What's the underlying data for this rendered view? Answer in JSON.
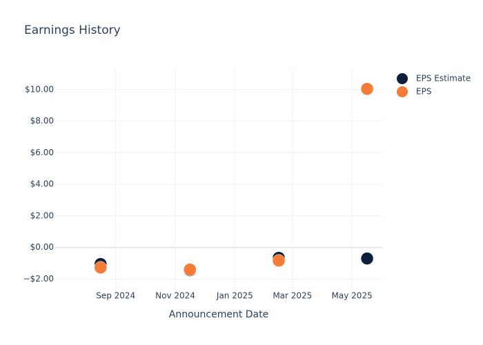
{
  "chart_data": {
    "type": "scatter",
    "title": "Earnings History",
    "x_label": "Announcement Date",
    "x": [
      "2024-08",
      "2024-11",
      "2025-02",
      "2025-05"
    ],
    "series": [
      {
        "name": "EPS Estimate",
        "color": "#0d1f3d",
        "values": [
          -1.05,
          -1.44,
          -0.66,
          -0.7
        ]
      },
      {
        "name": "EPS",
        "color": "#f47c36",
        "values": [
          -1.27,
          -1.4,
          -0.83,
          10.04
        ]
      }
    ],
    "xlim": [
      "2024-07",
      "2025-06"
    ],
    "xticks": [
      {
        "value": "2024-09",
        "label": "Sep 2024"
      },
      {
        "value": "2024-11",
        "label": "Nov 2024"
      },
      {
        "value": "2025-01",
        "label": "Jan 2025"
      },
      {
        "value": "2025-03",
        "label": "Mar 2025"
      },
      {
        "value": "2025-05",
        "label": "May 2025"
      }
    ],
    "ylim": [
      -2.9,
      11.3
    ],
    "yticks": [
      {
        "value": -2,
        "label": "−$2.00"
      },
      {
        "value": 0,
        "label": "$0.00"
      },
      {
        "value": 2,
        "label": "$2.00"
      },
      {
        "value": 4,
        "label": "$4.00"
      },
      {
        "value": 6,
        "label": "$6.00"
      },
      {
        "value": 8,
        "label": "$8.00"
      },
      {
        "value": 10,
        "label": "$10.00"
      }
    ],
    "grid": true,
    "legend": "top-right"
  }
}
